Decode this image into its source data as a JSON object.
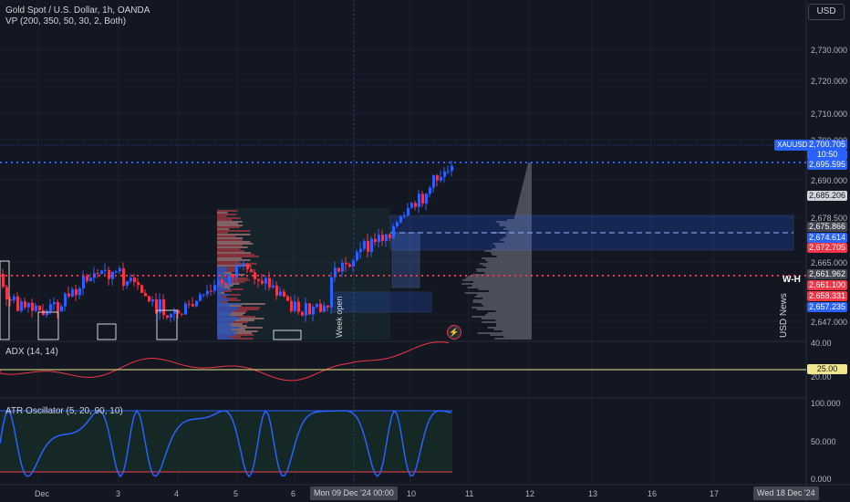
{
  "header": {
    "title": "Gold Spot / U.S. Dollar, 1h, OANDA",
    "indicator": "VP (200, 350, 50, 30, 2, Both)",
    "currency": "USD"
  },
  "price_axis": {
    "ticks": [
      "2,730.000",
      "2,720.000",
      "2,710.000",
      "2,700.000",
      "2,690.000",
      "2,678.500",
      "2,665.000",
      "2,647.000"
    ],
    "labels": [
      {
        "text": "2,700.705",
        "color": "#2962ff"
      },
      {
        "text": "10:50",
        "color": "#2962ff"
      },
      {
        "text": "2,695.595",
        "color": "#2962ff"
      },
      {
        "text": "2,685.206",
        "color": "#d1d4dc"
      },
      {
        "text": "2,675.866",
        "color": "#434651"
      },
      {
        "text": "2,674.614",
        "color": "#2962ff"
      },
      {
        "text": "2,672.705",
        "color": "#f23645"
      },
      {
        "text": "2,661.962",
        "color": "#434651"
      },
      {
        "text": "2,661.100",
        "color": "#f23645"
      },
      {
        "text": "2,658.331",
        "color": "#f23645"
      },
      {
        "text": "2,657.235",
        "color": "#2962ff"
      }
    ],
    "symbol_tag": "XAUUSD"
  },
  "annotations": {
    "wh": "W-H",
    "usd_news": "USD News",
    "week_open": "Week open",
    "bolt": "⚡"
  },
  "adx": {
    "title": "ADX (14, 14)",
    "ticks": [
      "40.00",
      "20.00"
    ],
    "level_label": "25.00"
  },
  "atr": {
    "title": "ATR Oscillator (5, 20, 90, 10)",
    "ticks": [
      "100.000",
      "50.000",
      "0.000"
    ]
  },
  "time_axis": {
    "ticks": [
      "Dec",
      "3",
      "4",
      "5",
      "6",
      "10",
      "11",
      "12",
      "13",
      "16",
      "17"
    ],
    "highlight_left": "Mon 09 Dec '24   00:00",
    "highlight_right": "Wed 18 Dec '24"
  },
  "colors": {
    "up": "#2962ff",
    "down": "#f23645",
    "bg": "#131722",
    "grid": "#1e222d"
  }
}
